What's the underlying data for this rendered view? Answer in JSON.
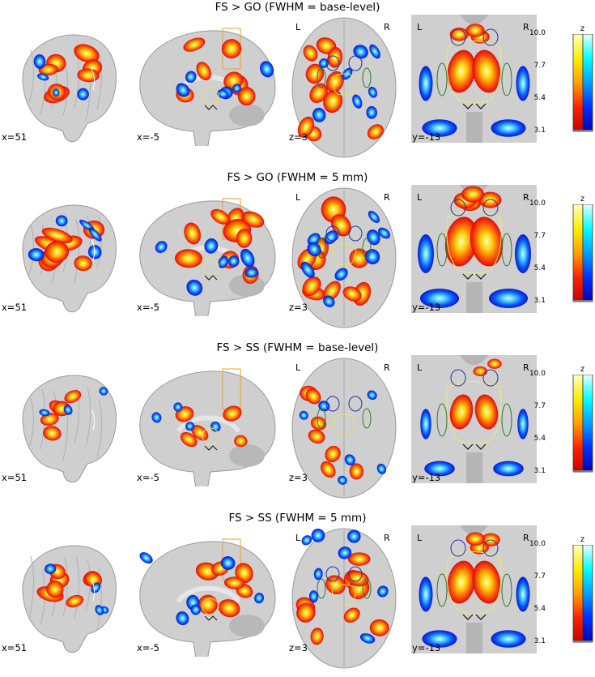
{
  "rows": [
    {
      "title": "FS > GO (FWHM = base-level)",
      "labels": {
        "sag_lat": "x=51",
        "sag_med": "x=-5",
        "axial": "z=3",
        "coronal": "y=-13"
      },
      "intensity": "medium"
    },
    {
      "title": "FS > GO (FWHM = 5 mm)",
      "labels": {
        "sag_lat": "x=51",
        "sag_med": "x=-5",
        "axial": "z=3",
        "coronal": "y=-13"
      },
      "intensity": "high"
    },
    {
      "title": "FS > SS (FWHM = base-level)",
      "labels": {
        "sag_lat": "x=51",
        "sag_med": "x=-5",
        "axial": "z=3",
        "coronal": "y=-13"
      },
      "intensity": "low"
    },
    {
      "title": "FS > SS (FWHM = 5 mm)",
      "labels": {
        "sag_lat": "x=51",
        "sag_med": "x=-5",
        "axial": "z=3",
        "coronal": "y=-13"
      },
      "intensity": "medium"
    }
  ],
  "orientation": {
    "left": "L",
    "right": "R"
  },
  "colorbar": {
    "label": "z",
    "ticks": [
      "10.0",
      "7.7",
      "5.4",
      "3.1"
    ],
    "hot_colors": [
      "#ffffc0",
      "#ffee00",
      "#ffa000",
      "#ff2200",
      "#c80000"
    ],
    "cold_colors": [
      "#e8ffff",
      "#00ffff",
      "#00a0ff",
      "#0030ff",
      "#0000b0"
    ]
  },
  "colors": {
    "brain": "#cfcfcf",
    "brain_dark": "#a8a8a8",
    "background": "#ffffff"
  }
}
